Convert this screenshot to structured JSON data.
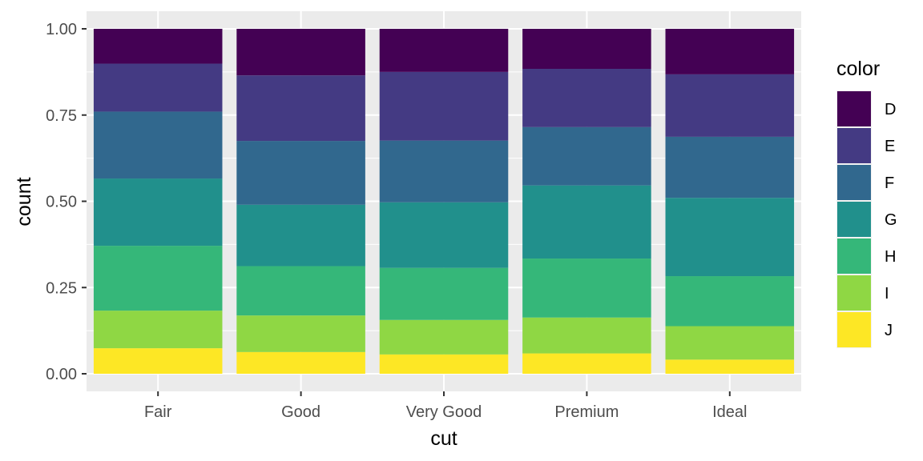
{
  "chart_data": {
    "type": "bar",
    "stacked": true,
    "position": "fill",
    "xlabel": "cut",
    "ylabel": "count",
    "ylim": [
      0,
      1
    ],
    "yticks": [
      "0.00",
      "0.25",
      "0.50",
      "0.75",
      "1.00"
    ],
    "ytick_values": [
      0,
      0.25,
      0.5,
      0.75,
      1.0
    ],
    "categories": [
      "Fair",
      "Good",
      "Very Good",
      "Premium",
      "Ideal"
    ],
    "legend": {
      "title": "color",
      "placement": "right"
    },
    "grid": true,
    "panel_background": "#EBEBEB",
    "series": [
      {
        "name": "D",
        "color": "#440154",
        "values": [
          0.101,
          0.135,
          0.125,
          0.116,
          0.132
        ]
      },
      {
        "name": "E",
        "color": "#443A83",
        "values": [
          0.139,
          0.19,
          0.199,
          0.169,
          0.181
        ]
      },
      {
        "name": "F",
        "color": "#31688E",
        "values": [
          0.194,
          0.185,
          0.179,
          0.169,
          0.177
        ]
      },
      {
        "name": "G",
        "color": "#21908C",
        "values": [
          0.195,
          0.178,
          0.19,
          0.212,
          0.227
        ]
      },
      {
        "name": "H",
        "color": "#35B779",
        "values": [
          0.188,
          0.143,
          0.151,
          0.171,
          0.145
        ]
      },
      {
        "name": "I",
        "color": "#8FD744",
        "values": [
          0.109,
          0.106,
          0.1,
          0.104,
          0.097
        ]
      },
      {
        "name": "J",
        "color": "#FDE725",
        "values": [
          0.074,
          0.063,
          0.056,
          0.059,
          0.041
        ]
      }
    ]
  }
}
